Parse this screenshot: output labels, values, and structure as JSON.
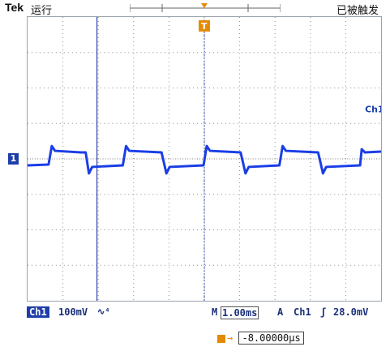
{
  "header": {
    "brand": "Tek",
    "run_state": "运行",
    "trigger_state": "已被触发"
  },
  "display": {
    "channel_label": "Ch1",
    "ground_marker": "1",
    "trigger_position_marker": "T",
    "waveform_color": "#1a3ee6",
    "grid_color": "#808080"
  },
  "status": {
    "channel": "Ch1",
    "volts_per_div": "100mV",
    "bandwidth_glyph": "∿⁴",
    "timebase_prefix": "M",
    "timebase": "1.00ms",
    "trigger_mode": "A",
    "trigger_source": "Ch1",
    "trigger_slope": "ʃ",
    "trigger_level": "28.0mV"
  },
  "horizontal": {
    "delay_arrow": "→",
    "delay_value": "-8.00000µs"
  }
}
